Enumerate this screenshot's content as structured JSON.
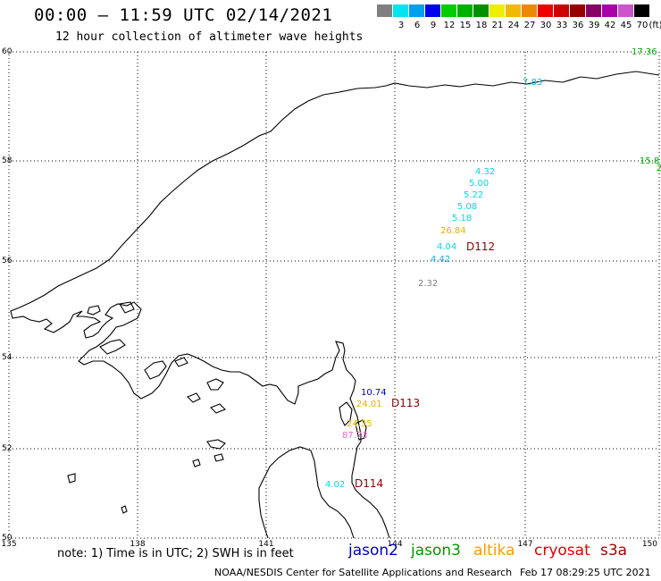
{
  "header": {
    "title": "00:00 – 11:59 UTC 02/14/2021",
    "subtitle": "12 hour collection of altimeter wave heights"
  },
  "legend": {
    "colors": [
      "#808080",
      "#00e5ee",
      "#00a0ee",
      "#0000ee",
      "#00cc00",
      "#00b000",
      "#009000",
      "#eeee00",
      "#eebb00",
      "#ee8800",
      "#ee0000",
      "#cc0000",
      "#990000",
      "#880066",
      "#aa00aa",
      "#cc55cc",
      "#000000"
    ],
    "labels": [
      "3",
      "6",
      "9",
      "12",
      "15",
      "18",
      "21",
      "24",
      "27",
      "30",
      "33",
      "36",
      "39",
      "42",
      "45",
      "70",
      "(ft)"
    ]
  },
  "axes": {
    "lat_labels": [
      "60",
      "58",
      "56",
      "54",
      "52",
      "50"
    ],
    "lon_labels": [
      "135",
      "138",
      "141",
      "144",
      "147",
      "150"
    ]
  },
  "observations": [
    {
      "text": "17.36",
      "color": "#00aa00"
    },
    {
      "text": "7.83",
      "color": "#00b8e0"
    },
    {
      "text": "15.8",
      "color": "#00aa00"
    },
    {
      "text": "2",
      "color": "#00aa00"
    },
    {
      "text": "4.32",
      "color": "#00d8e8"
    },
    {
      "text": "5.00",
      "color": "#00d8e8"
    },
    {
      "text": "5.22",
      "color": "#00d8e8"
    },
    {
      "text": "5.08",
      "color": "#00d8e8"
    },
    {
      "text": "5.18",
      "color": "#00d8e8"
    },
    {
      "text": "26.84",
      "color": "#e8b000"
    },
    {
      "text": "4.04",
      "color": "#00d8e8"
    },
    {
      "text": "4.42",
      "color": "#00b8e0"
    },
    {
      "text": "2.32",
      "color": "#808080"
    },
    {
      "text": "10.74",
      "color": "#0000cc"
    },
    {
      "text": "24.01",
      "color": "#e8b000"
    },
    {
      "text": "24.35",
      "color": "#e8b000"
    },
    {
      "text": "87.73",
      "color": "#ee66cc"
    },
    {
      "text": "4.02",
      "color": "#00d8e8"
    }
  ],
  "track_labels": [
    {
      "text": "D112",
      "color": "#880000"
    },
    {
      "text": "D113",
      "color": "#880000"
    },
    {
      "text": "D114",
      "color": "#880000"
    }
  ],
  "footer": {
    "note": "note: 1) Time is in UTC; 2) SWH is in feet",
    "satellites": [
      {
        "name": "jason2",
        "color": "#0000cc"
      },
      {
        "name": "jason3",
        "color": "#009900"
      },
      {
        "name": "altika",
        "color": "#ff9900"
      },
      {
        "name": "cryosat",
        "color": "#dd0000"
      },
      {
        "name": "s3a",
        "color": "#aa0000"
      }
    ],
    "credit": "NOAA/NESDIS Center for Satellite Applications and Research",
    "timestamp": "Feb 17 08:29:25 UTC 2021"
  }
}
